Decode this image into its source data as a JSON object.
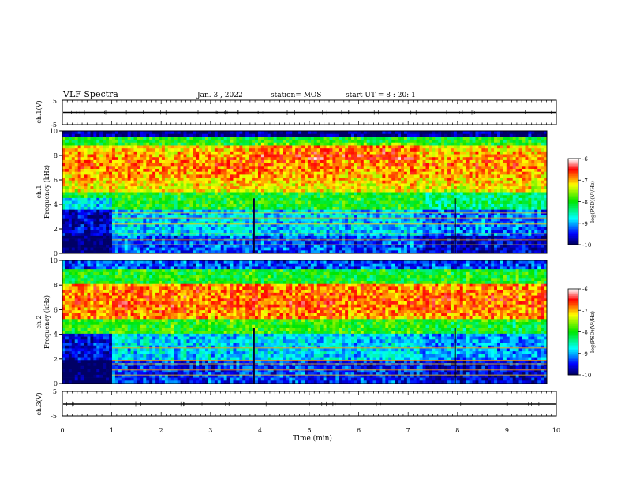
{
  "header": {
    "title": "VLF Spectra",
    "date": "Jan. 3 , 2022",
    "station": "station= MOS",
    "start_ut": "start UT = 8 : 20: 1"
  },
  "colors": {
    "background": "#ffffff",
    "colormap": [
      "#000066",
      "#0000ff",
      "#00ffff",
      "#00ff00",
      "#ffff00",
      "#ff0000",
      "#ffffff"
    ]
  },
  "chart_data": [
    {
      "type": "line",
      "id": "ch1-waveform",
      "ylabel": "ch.1(V)",
      "ylim": [
        -5,
        5
      ],
      "yticks": [
        5,
        -5
      ],
      "xlim": [
        0,
        10
      ],
      "level": 0,
      "description": "flat trace near 0 V with small spikes"
    },
    {
      "type": "heatmap",
      "id": "ch1-spectrogram",
      "ylabel": "ch.1 Frequency (kHz)",
      "xlim": [
        0,
        10
      ],
      "ylim": [
        0,
        10
      ],
      "yticks": [
        0,
        2,
        4,
        6,
        8,
        10
      ],
      "colorbar": {
        "label": "log(PSD)(V²/Hz)",
        "min": -10,
        "max": -6,
        "ticks": [
          -6,
          -7,
          -8,
          -9,
          -10
        ]
      },
      "dominant_band_khz": [
        5,
        9.5
      ]
    },
    {
      "type": "heatmap",
      "id": "ch2-spectrogram",
      "ylabel": "ch.2 Frequency (kHz)",
      "xlim": [
        0,
        10
      ],
      "ylim": [
        0,
        10
      ],
      "yticks": [
        0,
        2,
        4,
        6,
        8,
        10
      ],
      "colorbar": {
        "label": "log(PSD)(V²/Hz)",
        "min": -10,
        "max": -6,
        "ticks": [
          -6,
          -7,
          -8,
          -9,
          -10
        ]
      },
      "dominant_band_khz": [
        5,
        8
      ]
    },
    {
      "type": "line",
      "id": "ch3-waveform",
      "ylabel": "ch.3(V)",
      "ylim": [
        -5,
        5
      ],
      "yticks": [
        5,
        -5
      ],
      "xlim": [
        0,
        10
      ],
      "level": 0,
      "description": "flat trace near 0 V"
    }
  ],
  "xaxis": {
    "label": "Time (min)",
    "ticks": [
      "0",
      "1",
      "2",
      "3",
      "4",
      "5",
      "6",
      "7",
      "8",
      "9",
      "10"
    ]
  }
}
